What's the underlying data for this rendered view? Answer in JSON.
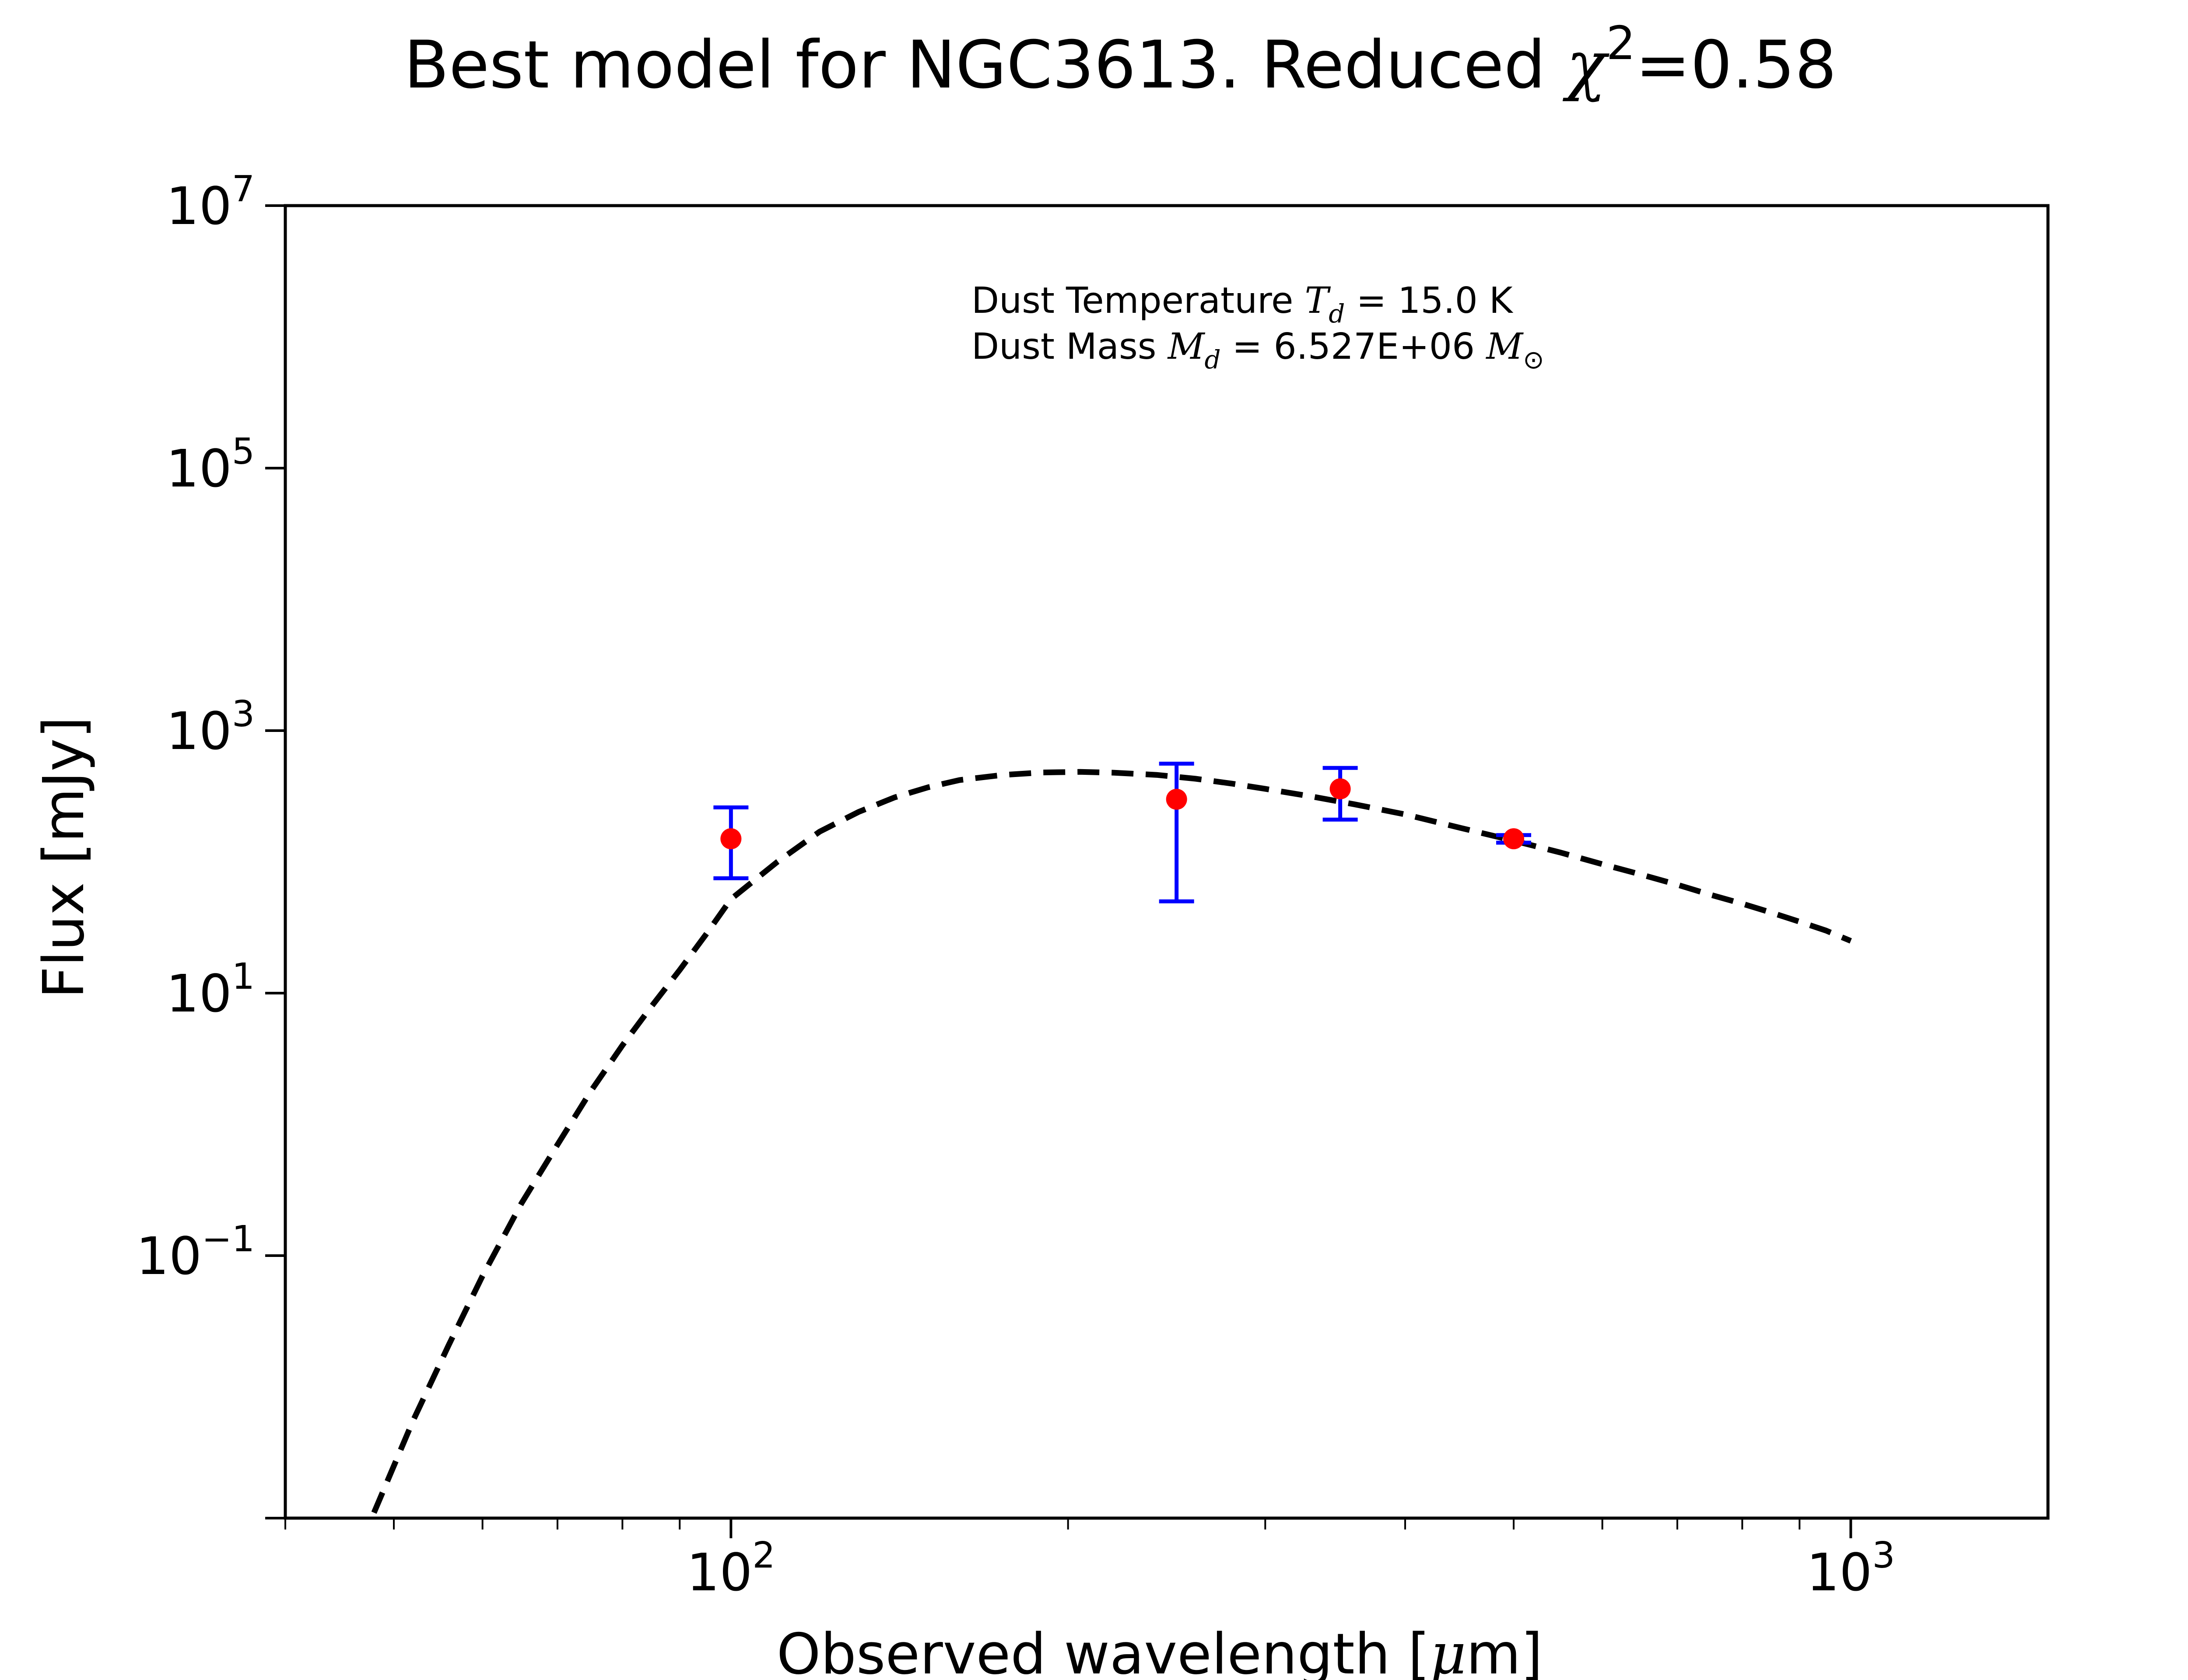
{
  "chart_data": {
    "type": "line",
    "title_text": "Best model for NGC3613. Reduced ",
    "title_chi_symbol": "χ",
    "title_chi_exp": "2",
    "title_chi_value": "=0.58",
    "xlabel_prefix": "Observed wavelength [",
    "xlabel_mu": "μ",
    "xlabel_suffix": "m]",
    "ylabel": "Flux [mJy]",
    "xscale": "log",
    "yscale": "log",
    "xlim": [
      40,
      1500
    ],
    "ylim": [
      0.001,
      10000000
    ],
    "grid": false,
    "x_ticks": [
      {
        "value": 100,
        "base": "10",
        "exp": "2"
      },
      {
        "value": 1000,
        "base": "10",
        "exp": "3"
      }
    ],
    "y_ticks": [
      {
        "value": 0.1,
        "base": "10",
        "exp": "−1"
      },
      {
        "value": 10,
        "base": "10",
        "exp": "1"
      },
      {
        "value": 1000,
        "base": "10",
        "exp": "3"
      },
      {
        "value": 100000,
        "base": "10",
        "exp": "5"
      },
      {
        "value": 10000000,
        "base": "10",
        "exp": "7"
      }
    ],
    "annotation": {
      "line1_prefix": "Dust Temperature ",
      "line1_sym": "T",
      "line1_sub": "d",
      "line1_value": " = 15.0 K",
      "line2_prefix": "Dust Mass ",
      "line2_sym": "M",
      "line2_sub": "d",
      "line2_value": " = 6.527E+06 ",
      "line2_unit": "M",
      "line2_unit_sub": "⊙"
    },
    "model_curve": {
      "style": "dashed",
      "color": "#000000",
      "points": [
        [
          48,
          0.0011
        ],
        [
          52,
          0.0055
        ],
        [
          56,
          0.021
        ],
        [
          60,
          0.07
        ],
        [
          65,
          0.25
        ],
        [
          70,
          0.7
        ],
        [
          75,
          1.8
        ],
        [
          80,
          4.0
        ],
        [
          85,
          8.0
        ],
        [
          90,
          15
        ],
        [
          95,
          28
        ],
        [
          100,
          52
        ],
        [
          110,
          100
        ],
        [
          120,
          170
        ],
        [
          130,
          240
        ],
        [
          140,
          310
        ],
        [
          150,
          370
        ],
        [
          160,
          420
        ],
        [
          175,
          460
        ],
        [
          190,
          480
        ],
        [
          205,
          485
        ],
        [
          220,
          478
        ],
        [
          240,
          460
        ],
        [
          260,
          430
        ],
        [
          280,
          395
        ],
        [
          300,
          360
        ],
        [
          330,
          315
        ],
        [
          360,
          275
        ],
        [
          400,
          230
        ],
        [
          450,
          180
        ],
        [
          500,
          145
        ],
        [
          550,
          118
        ],
        [
          600,
          96
        ],
        [
          650,
          80
        ],
        [
          700,
          67
        ],
        [
          750,
          56
        ],
        [
          800,
          48
        ],
        [
          850,
          41
        ],
        [
          900,
          35
        ],
        [
          950,
          30
        ],
        [
          1000,
          25
        ]
      ]
    },
    "observations": {
      "marker_color": "#ff0000",
      "errorbar_color": "#0000ff",
      "points": [
        {
          "x": 100,
          "y": 150,
          "yerr_low": 75,
          "yerr_high": 260
        },
        {
          "x": 250,
          "y": 300,
          "yerr_low": 50,
          "yerr_high": 560
        },
        {
          "x": 350,
          "y": 360,
          "yerr_low": 210,
          "yerr_high": 520
        },
        {
          "x": 500,
          "y": 150,
          "yerr_low": 140,
          "yerr_high": 160
        }
      ]
    }
  }
}
